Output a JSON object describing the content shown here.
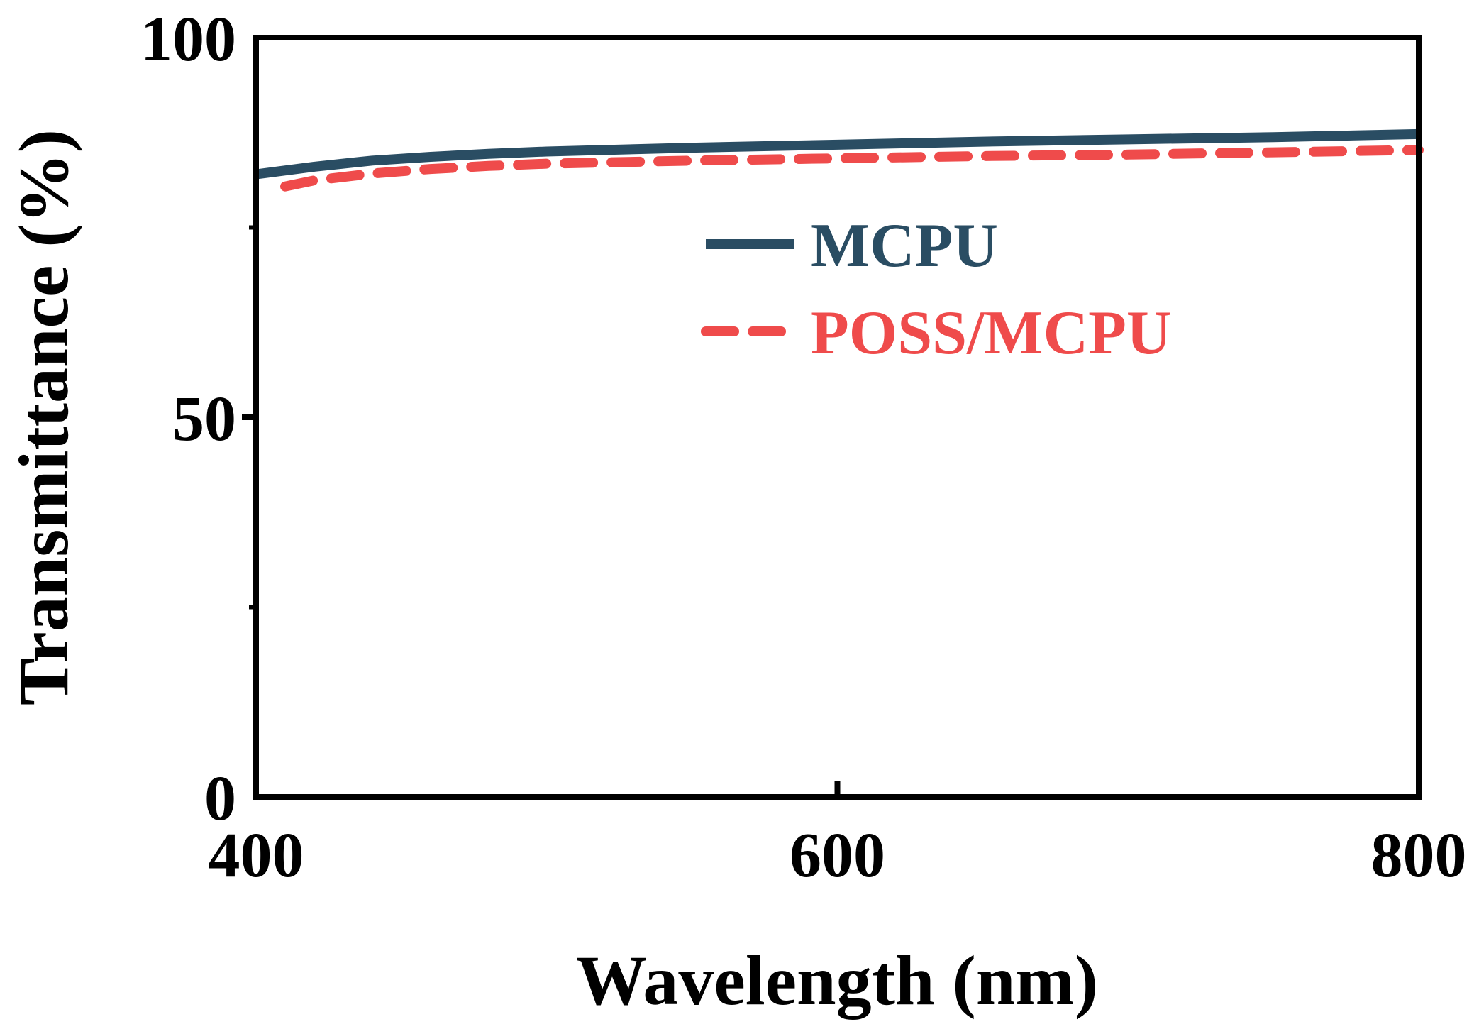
{
  "chart_data": {
    "type": "line",
    "xlabel": "Wavelength (nm)",
    "ylabel": "Transmittance (%)",
    "xlim": [
      400,
      800
    ],
    "ylim": [
      0,
      100
    ],
    "x_ticks": [
      400,
      600,
      800
    ],
    "y_ticks": [
      0,
      50,
      100
    ],
    "x_tick_labels": [
      "400",
      "600",
      "800"
    ],
    "y_tick_labels": [
      "0",
      "50",
      "100"
    ],
    "y_minor_ticks": [
      25,
      75
    ],
    "grid": false,
    "legend_position": "upper-right",
    "series": [
      {
        "name": "MCPU",
        "color": "#2a4d63",
        "line_style": "solid",
        "x": [
          400,
          420,
          440,
          460,
          480,
          500,
          550,
          600,
          650,
          700,
          750,
          800
        ],
        "y": [
          82.0,
          83.0,
          83.8,
          84.3,
          84.7,
          85.0,
          85.5,
          85.9,
          86.3,
          86.6,
          86.9,
          87.3
        ]
      },
      {
        "name": "POSS/MCPU",
        "color": "#ef4b4b",
        "line_style": "dashed",
        "x": [
          410,
          420,
          440,
          460,
          480,
          500,
          550,
          600,
          650,
          700,
          750,
          800
        ],
        "y": [
          80.4,
          81.2,
          82.1,
          82.7,
          83.1,
          83.4,
          83.8,
          84.1,
          84.4,
          84.6,
          84.9,
          85.2
        ]
      }
    ]
  }
}
